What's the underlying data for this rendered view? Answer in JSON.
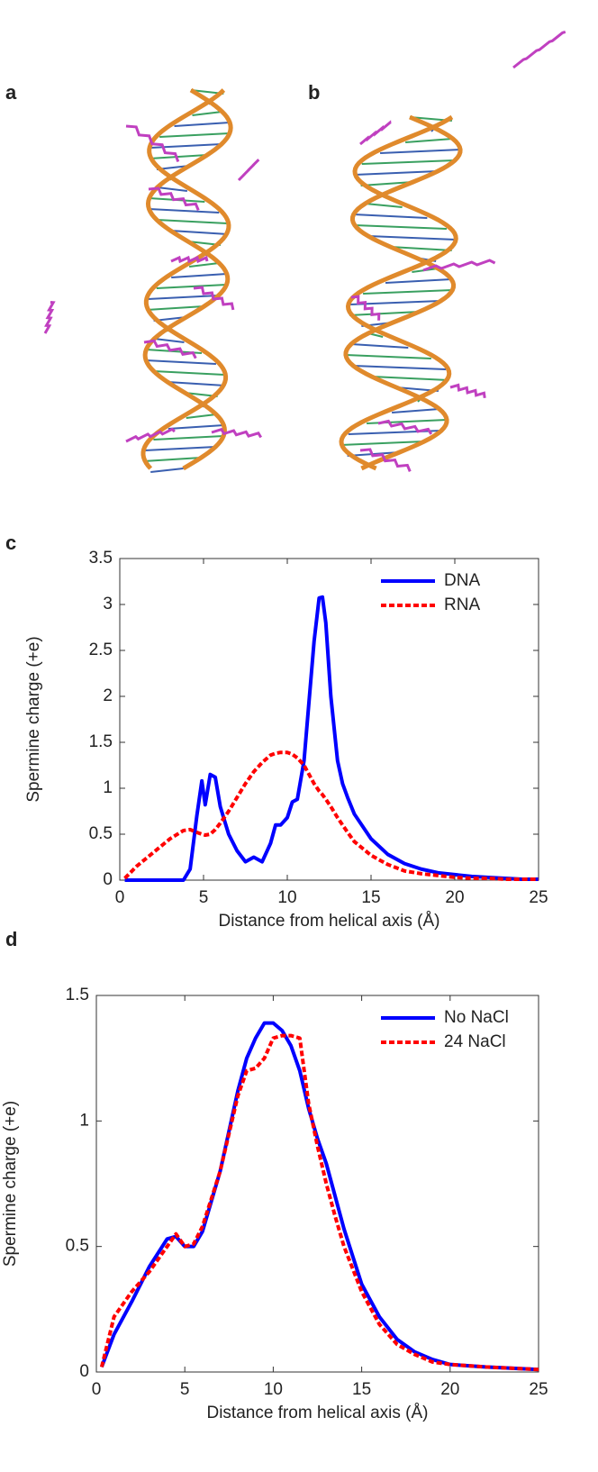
{
  "panel_labels": [
    "a",
    "b",
    "c",
    "d"
  ],
  "chart_data": [
    {
      "type": "line",
      "xlabel": "Distance from helical axis (Å)",
      "ylabel": "Spermine charge (+e)",
      "x": [
        0.3,
        1,
        2,
        3,
        3.8,
        4.2,
        4.6,
        4.9,
        5.1,
        5.4,
        5.7,
        6,
        6.5,
        7,
        7.5,
        8,
        8.5,
        9,
        9.3,
        9.6,
        10,
        10.3,
        10.6,
        11,
        11.3,
        11.6,
        11.9,
        12.1,
        12.3,
        12.6,
        13,
        13.3,
        13.6,
        14,
        15,
        16,
        17,
        18,
        19,
        20,
        21,
        22,
        23,
        24,
        25
      ],
      "series": [
        {
          "name": "DNA",
          "color": "#0000ff",
          "linestyle": "solid",
          "values": [
            0,
            0,
            0,
            0,
            0,
            0.12,
            0.7,
            1.08,
            0.82,
            1.15,
            1.12,
            0.8,
            0.5,
            0.32,
            0.2,
            0.25,
            0.2,
            0.4,
            0.6,
            0.6,
            0.68,
            0.85,
            0.88,
            1.3,
            1.95,
            2.6,
            3.07,
            3.08,
            2.8,
            2.0,
            1.3,
            1.05,
            0.9,
            0.72,
            0.45,
            0.28,
            0.18,
            0.12,
            0.08,
            0.06,
            0.04,
            0.03,
            0.02,
            0.01,
            0.01
          ]
        },
        {
          "name": "RNA",
          "color": "#ff0000",
          "linestyle": "dashed",
          "values": [
            0.02,
            0.15,
            0.3,
            0.45,
            0.54,
            0.55,
            0.52,
            0.5,
            0.49,
            0.5,
            0.55,
            0.62,
            0.75,
            0.9,
            1.05,
            1.18,
            1.28,
            1.36,
            1.38,
            1.39,
            1.39,
            1.37,
            1.33,
            1.25,
            1.15,
            1.05,
            0.97,
            0.93,
            0.88,
            0.8,
            0.68,
            0.6,
            0.52,
            0.42,
            0.27,
            0.17,
            0.1,
            0.07,
            0.05,
            0.03,
            0.02,
            0.02,
            0.01,
            0.01,
            0.01
          ]
        }
      ],
      "xlim": [
        0,
        25
      ],
      "xticks": [
        0,
        5,
        10,
        15,
        20,
        25
      ],
      "ylim": [
        0,
        3.5
      ],
      "yticks": [
        0,
        0.5,
        1,
        1.5,
        2,
        2.5,
        3,
        3.5
      ],
      "legend": "upper right"
    },
    {
      "type": "line",
      "xlabel": "Distance from helical axis (Å)",
      "ylabel": "Spermine charge (+e)",
      "x": [
        0.3,
        1,
        2,
        3,
        4,
        4.5,
        5,
        5.5,
        6,
        7,
        8,
        8.5,
        9,
        9.5,
        10,
        10.5,
        11,
        11.5,
        12,
        12.5,
        13,
        13.5,
        14,
        15,
        16,
        17,
        18,
        19,
        20,
        22,
        25
      ],
      "series": [
        {
          "name": "No NaCl",
          "color": "#0000ff",
          "linestyle": "solid",
          "values": [
            0.02,
            0.15,
            0.28,
            0.42,
            0.53,
            0.54,
            0.5,
            0.5,
            0.56,
            0.8,
            1.12,
            1.25,
            1.33,
            1.39,
            1.39,
            1.36,
            1.3,
            1.2,
            1.05,
            0.93,
            0.83,
            0.7,
            0.57,
            0.35,
            0.22,
            0.13,
            0.08,
            0.05,
            0.03,
            0.02,
            0.01
          ]
        },
        {
          "name": "24 NaCl",
          "color": "#ff0000",
          "linestyle": "dashed",
          "values": [
            0.02,
            0.22,
            0.32,
            0.4,
            0.5,
            0.55,
            0.5,
            0.51,
            0.58,
            0.8,
            1.1,
            1.2,
            1.21,
            1.25,
            1.33,
            1.34,
            1.34,
            1.33,
            1.07,
            0.9,
            0.75,
            0.62,
            0.5,
            0.32,
            0.19,
            0.11,
            0.07,
            0.04,
            0.03,
            0.02,
            0.01
          ]
        }
      ],
      "xlim": [
        0,
        25
      ],
      "xticks": [
        0,
        5,
        10,
        15,
        20,
        25
      ],
      "ylim": [
        0,
        1.5
      ],
      "yticks": [
        0,
        0.5,
        1,
        1.5
      ],
      "legend": "upper right"
    }
  ]
}
